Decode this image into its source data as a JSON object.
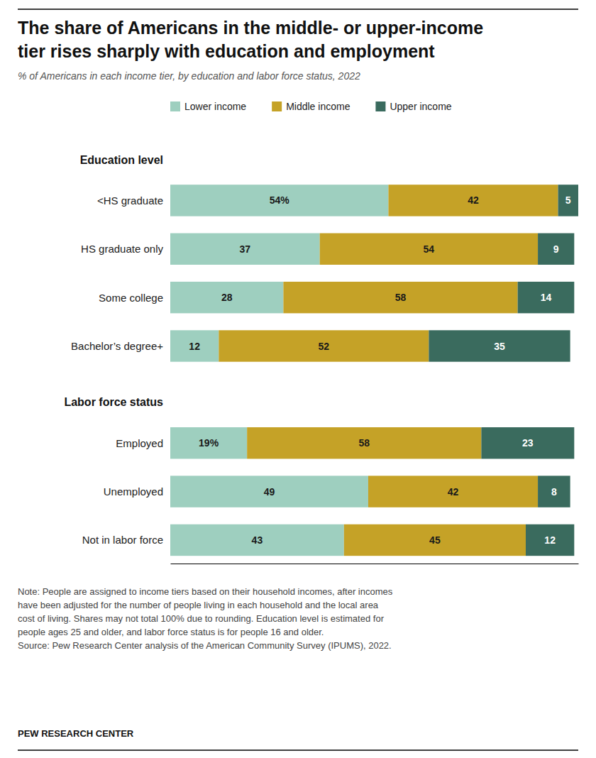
{
  "chart_data": {
    "type": "bar",
    "orientation": "horizontal",
    "stacked": true,
    "title": "The share of Americans in the middle- or upper-income\ntier rises sharply with education and employment",
    "subtitle": "% of Americans in each income tier, by education and labor force status, 2022",
    "categories": [
      "<HS graduate",
      "HS graduate only",
      "Some college",
      "Bachelor’s degree+",
      "Employed",
      "Unemployed",
      "Not in labor force"
    ],
    "groups": [
      "Education level",
      "Education level",
      "Education level",
      "Education level",
      "Labor force status",
      "Labor force status",
      "Labor force status"
    ],
    "series": [
      {
        "name": "Lower income",
        "color": "#9ecfbf",
        "values": [
          54,
          37,
          28,
          12,
          19,
          49,
          43
        ],
        "value_labels": [
          "54%",
          "37",
          "28",
          "12",
          "19%",
          "49",
          "43"
        ]
      },
      {
        "name": "Middle income",
        "color": "#c5a227",
        "values": [
          42,
          54,
          58,
          52,
          58,
          42,
          45
        ]
      },
      {
        "name": "Upper income",
        "color": "#3a6b5e",
        "values": [
          5,
          9,
          14,
          35,
          23,
          8,
          12
        ]
      }
    ],
    "xlim": [
      0,
      101
    ],
    "data_labels": true,
    "tick_labels": false,
    "legend": "top",
    "note": "Note: People are assigned to income tiers based on their household incomes, after incomes\nhave been adjusted for the number of people living in each household and the local area\ncost of living. Shares may not total 100% due to rounding. Education level is estimated for\npeople ages 25 and older, and labor force status is for people 16 and older.\nSource: Pew Research Center analysis of the American Community Survey (IPUMS), 2022.",
    "footer": "PEW RESEARCH CENTER"
  }
}
